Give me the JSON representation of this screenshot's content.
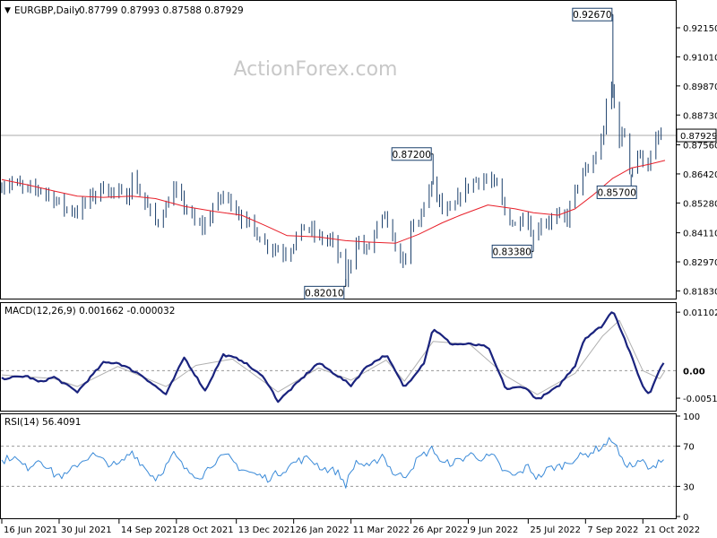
{
  "chart_data": [
    {
      "panel": "price",
      "type": "ohlc",
      "title": "EURGBP,Daily",
      "ohlc_readout": "0.87799 0.87993 0.87588 0.87929",
      "watermark": "ActionForex.com",
      "y_ticks": [
        "0.92150",
        "0.91010",
        "0.89870",
        "0.88730",
        "0.87560",
        "0.86420",
        "0.85280",
        "0.84110",
        "0.82970",
        "0.81830"
      ],
      "ylim": [
        0.816,
        0.931
      ],
      "last_price_label": "0.87929",
      "last_price": 0.87929,
      "annotations": [
        {
          "text": "0.92670",
          "value": 0.9267,
          "date": "2022-09-28"
        },
        {
          "text": "0.87200",
          "value": 0.872,
          "date": "2022-05-13"
        },
        {
          "text": "0.85700",
          "value": 0.857,
          "date": "2022-10-12"
        },
        {
          "text": "0.83380",
          "value": 0.8338,
          "date": "2022-07-29"
        },
        {
          "text": "0.82010",
          "value": 0.8201,
          "date": "2022-03-07"
        }
      ],
      "close_path": [
        [
          "2021-06-16",
          0.86
        ],
        [
          "2021-06-25",
          0.861
        ],
        [
          "2021-07-05",
          0.8575
        ],
        [
          "2021-07-15",
          0.8585
        ],
        [
          "2021-07-26",
          0.8545
        ],
        [
          "2021-08-04",
          0.8505
        ],
        [
          "2021-08-13",
          0.8495
        ],
        [
          "2021-08-24",
          0.8555
        ],
        [
          "2021-09-02",
          0.859
        ],
        [
          "2021-09-10",
          0.857
        ],
        [
          "2021-09-20",
          0.855
        ],
        [
          "2021-09-24",
          0.862
        ],
        [
          "2021-10-01",
          0.856
        ],
        [
          "2021-10-12",
          0.845
        ],
        [
          "2021-10-20",
          0.851
        ],
        [
          "2021-10-25",
          0.8585
        ],
        [
          "2021-11-03",
          0.852
        ],
        [
          "2021-11-12",
          0.844
        ],
        [
          "2021-11-19",
          0.844
        ],
        [
          "2021-11-26",
          0.852
        ],
        [
          "2021-12-03",
          0.8555
        ],
        [
          "2021-12-10",
          0.853
        ],
        [
          "2021-12-17",
          0.847
        ],
        [
          "2021-12-27",
          0.842
        ],
        [
          "2022-01-04",
          0.837
        ],
        [
          "2022-01-12",
          0.835
        ],
        [
          "2022-01-21",
          0.833
        ],
        [
          "2022-01-28",
          0.839
        ],
        [
          "2022-02-04",
          0.844
        ],
        [
          "2022-02-14",
          0.839
        ],
        [
          "2022-02-24",
          0.838
        ],
        [
          "2022-03-04",
          0.829
        ],
        [
          "2022-03-07",
          0.823
        ],
        [
          "2022-03-15",
          0.838
        ],
        [
          "2022-03-23",
          0.834
        ],
        [
          "2022-03-31",
          0.843
        ],
        [
          "2022-04-07",
          0.848
        ],
        [
          "2022-04-14",
          0.833
        ],
        [
          "2022-04-21",
          0.83
        ],
        [
          "2022-04-26",
          0.842
        ],
        [
          "2022-05-02",
          0.845
        ],
        [
          "2022-05-06",
          0.853
        ],
        [
          "2022-05-13",
          0.86
        ],
        [
          "2022-05-20",
          0.85
        ],
        [
          "2022-05-27",
          0.849
        ],
        [
          "2022-06-03",
          0.856
        ],
        [
          "2022-06-10",
          0.86
        ],
        [
          "2022-06-15",
          0.862
        ],
        [
          "2022-06-24",
          0.862
        ],
        [
          "2022-07-01",
          0.859
        ],
        [
          "2022-07-08",
          0.848
        ],
        [
          "2022-07-15",
          0.844
        ],
        [
          "2022-07-22",
          0.849
        ],
        [
          "2022-07-29",
          0.84
        ],
        [
          "2022-08-03",
          0.845
        ],
        [
          "2022-08-10",
          0.846
        ],
        [
          "2022-08-17",
          0.847
        ],
        [
          "2022-08-24",
          0.847
        ],
        [
          "2022-08-30",
          0.858
        ],
        [
          "2022-09-06",
          0.864
        ],
        [
          "2022-09-13",
          0.869
        ],
        [
          "2022-09-20",
          0.878
        ],
        [
          "2022-09-26",
          0.902
        ],
        [
          "2022-09-28",
          0.894
        ],
        [
          "2022-10-03",
          0.878
        ],
        [
          "2022-10-07",
          0.88
        ],
        [
          "2022-10-12",
          0.864
        ],
        [
          "2022-10-17",
          0.872
        ],
        [
          "2022-10-21",
          0.87
        ],
        [
          "2022-10-26",
          0.868
        ],
        [
          "2022-10-31",
          0.877
        ],
        [
          "2022-11-03",
          0.879
        ],
        [
          "2022-11-07",
          0.8793
        ]
      ],
      "ma_path": [
        [
          "2021-06-16",
          0.862
        ],
        [
          "2021-07-05",
          0.86
        ],
        [
          "2021-07-26",
          0.8575
        ],
        [
          "2021-08-13",
          0.8555
        ],
        [
          "2021-09-02",
          0.855
        ],
        [
          "2021-09-24",
          0.8555
        ],
        [
          "2021-10-12",
          0.8545
        ],
        [
          "2021-11-03",
          0.8515
        ],
        [
          "2021-11-26",
          0.8495
        ],
        [
          "2021-12-17",
          0.848
        ],
        [
          "2022-01-04",
          0.844
        ],
        [
          "2022-01-21",
          0.84
        ],
        [
          "2022-02-14",
          0.8395
        ],
        [
          "2022-03-07",
          0.838
        ],
        [
          "2022-03-23",
          0.8375
        ],
        [
          "2022-04-14",
          0.837
        ],
        [
          "2022-05-02",
          0.8405
        ],
        [
          "2022-05-20",
          0.845
        ],
        [
          "2022-06-03",
          0.848
        ],
        [
          "2022-06-24",
          0.852
        ],
        [
          "2022-07-15",
          0.8505
        ],
        [
          "2022-07-29",
          0.849
        ],
        [
          "2022-08-17",
          0.848
        ],
        [
          "2022-08-30",
          0.8505
        ],
        [
          "2022-09-13",
          0.856
        ],
        [
          "2022-09-28",
          0.8625
        ],
        [
          "2022-10-12",
          0.8665
        ],
        [
          "2022-10-26",
          0.868
        ],
        [
          "2022-11-07",
          0.8695
        ]
      ]
    },
    {
      "panel": "macd",
      "type": "line",
      "title": "MACD(12,26,9) 0.001662 -0.000032",
      "y_ticks": [
        "0.011023",
        "0.00",
        "-0.005182"
      ],
      "ylim": [
        -0.0072,
        0.0124
      ],
      "last_label": "0.00",
      "macd_path": [
        [
          "2021-06-16",
          -0.0015
        ],
        [
          "2021-07-05",
          -0.001
        ],
        [
          "2021-07-15",
          -0.0022
        ],
        [
          "2021-07-26",
          -0.0012
        ],
        [
          "2021-08-13",
          -0.004
        ],
        [
          "2021-09-02",
          0.0015
        ],
        [
          "2021-09-13",
          0.0015
        ],
        [
          "2021-10-01",
          -0.0008
        ],
        [
          "2021-10-20",
          -0.0045
        ],
        [
          "2021-11-03",
          0.0025
        ],
        [
          "2021-11-19",
          -0.0038
        ],
        [
          "2021-12-03",
          0.003
        ],
        [
          "2021-12-17",
          0.002
        ],
        [
          "2022-01-04",
          -0.0015
        ],
        [
          "2022-01-14",
          -0.0058
        ],
        [
          "2022-01-28",
          -0.0025
        ],
        [
          "2022-02-14",
          0.0015
        ],
        [
          "2022-03-04",
          -0.0015
        ],
        [
          "2022-03-11",
          -0.0028
        ],
        [
          "2022-03-23",
          0.0008
        ],
        [
          "2022-04-07",
          0.003
        ],
        [
          "2022-04-21",
          -0.0032
        ],
        [
          "2022-05-06",
          0.0015
        ],
        [
          "2022-05-13",
          0.008
        ],
        [
          "2022-05-27",
          0.005
        ],
        [
          "2022-06-10",
          0.005
        ],
        [
          "2022-06-24",
          0.0045
        ],
        [
          "2022-07-08",
          -0.0035
        ],
        [
          "2022-07-22",
          -0.003
        ],
        [
          "2022-08-01",
          -0.0055
        ],
        [
          "2022-08-17",
          -0.003
        ],
        [
          "2022-08-30",
          0.001
        ],
        [
          "2022-09-06",
          0.006
        ],
        [
          "2022-09-20",
          0.0085
        ],
        [
          "2022-09-28",
          0.0115
        ],
        [
          "2022-10-07",
          0.006
        ],
        [
          "2022-10-21",
          -0.003
        ],
        [
          "2022-10-26",
          -0.0045
        ],
        [
          "2022-11-03",
          0.0005
        ],
        [
          "2022-11-07",
          0.0017
        ]
      ],
      "signal_path": [
        [
          "2021-06-16",
          -0.0008
        ],
        [
          "2021-07-26",
          -0.0015
        ],
        [
          "2021-08-13",
          -0.003
        ],
        [
          "2021-09-13",
          0.0008
        ],
        [
          "2021-10-20",
          -0.003
        ],
        [
          "2021-11-12",
          0.001
        ],
        [
          "2021-12-10",
          0.0022
        ],
        [
          "2022-01-14",
          -0.004
        ],
        [
          "2022-02-14",
          0.0005
        ],
        [
          "2022-03-11",
          -0.0018
        ],
        [
          "2022-04-07",
          0.002
        ],
        [
          "2022-04-21",
          -0.002
        ],
        [
          "2022-05-13",
          0.0055
        ],
        [
          "2022-06-10",
          0.005
        ],
        [
          "2022-07-08",
          -0.001
        ],
        [
          "2022-08-01",
          -0.0045
        ],
        [
          "2022-08-30",
          -0.0005
        ],
        [
          "2022-09-20",
          0.0065
        ],
        [
          "2022-10-03",
          0.0095
        ],
        [
          "2022-10-21",
          0.0
        ],
        [
          "2022-11-03",
          -0.0015
        ],
        [
          "2022-11-07",
          0.0
        ]
      ]
    },
    {
      "panel": "rsi",
      "type": "line",
      "title": "RSI(14) 56.4091",
      "y_ticks": [
        "100",
        "70",
        "30",
        "0"
      ],
      "ylim": [
        0,
        100
      ],
      "levels": [
        70,
        30
      ],
      "rsi_path": [
        [
          "2021-06-16",
          55
        ],
        [
          "2021-06-24",
          60
        ],
        [
          "2021-07-05",
          48
        ],
        [
          "2021-07-15",
          58
        ],
        [
          "2021-07-26",
          42
        ],
        [
          "2021-08-04",
          40
        ],
        [
          "2021-08-13",
          52
        ],
        [
          "2021-08-24",
          62
        ],
        [
          "2021-09-02",
          55
        ],
        [
          "2021-09-13",
          50
        ],
        [
          "2021-09-24",
          65
        ],
        [
          "2021-10-04",
          48
        ],
        [
          "2021-10-12",
          38
        ],
        [
          "2021-10-20",
          50
        ],
        [
          "2021-10-26",
          62
        ],
        [
          "2021-11-05",
          45
        ],
        [
          "2021-11-16",
          40
        ],
        [
          "2021-11-26",
          55
        ],
        [
          "2021-12-06",
          60
        ],
        [
          "2021-12-16",
          48
        ],
        [
          "2021-12-27",
          42
        ],
        [
          "2022-01-06",
          38
        ],
        [
          "2022-01-17",
          45
        ],
        [
          "2022-01-28",
          55
        ],
        [
          "2022-02-07",
          58
        ],
        [
          "2022-02-17",
          48
        ],
        [
          "2022-02-28",
          45
        ],
        [
          "2022-03-07",
          32
        ],
        [
          "2022-03-15",
          55
        ],
        [
          "2022-03-25",
          48
        ],
        [
          "2022-04-04",
          62
        ],
        [
          "2022-04-13",
          42
        ],
        [
          "2022-04-21",
          40
        ],
        [
          "2022-05-02",
          58
        ],
        [
          "2022-05-13",
          68
        ],
        [
          "2022-05-20",
          52
        ],
        [
          "2022-06-01",
          55
        ],
        [
          "2022-06-10",
          62
        ],
        [
          "2022-06-20",
          58
        ],
        [
          "2022-06-28",
          60
        ],
        [
          "2022-07-06",
          45
        ],
        [
          "2022-07-15",
          40
        ],
        [
          "2022-07-25",
          50
        ],
        [
          "2022-08-01",
          38
        ],
        [
          "2022-08-10",
          48
        ],
        [
          "2022-08-19",
          50
        ],
        [
          "2022-08-30",
          58
        ],
        [
          "2022-09-08",
          62
        ],
        [
          "2022-09-20",
          70
        ],
        [
          "2022-09-28",
          78
        ],
        [
          "2022-10-05",
          55
        ],
        [
          "2022-10-13",
          50
        ],
        [
          "2022-10-21",
          55
        ],
        [
          "2022-10-27",
          45
        ],
        [
          "2022-11-03",
          58
        ],
        [
          "2022-11-07",
          56.4
        ]
      ]
    }
  ],
  "x_axis": {
    "start": "2021-06-16",
    "end": "2022-11-07",
    "tick_labels": [
      {
        "text": "16 Jun 2021",
        "date": "2021-06-16"
      },
      {
        "text": "30 Jul 2021",
        "date": "2021-07-30"
      },
      {
        "text": "14 Sep 2021",
        "date": "2021-09-14"
      },
      {
        "text": "28 Oct 2021",
        "date": "2021-10-28"
      },
      {
        "text": "13 Dec 2021",
        "date": "2021-12-13"
      },
      {
        "text": "26 Jan 2022",
        "date": "2022-01-26"
      },
      {
        "text": "11 Mar 2022",
        "date": "2022-03-11"
      },
      {
        "text": "26 Apr 2022",
        "date": "2022-04-26"
      },
      {
        "text": "9 Jun 2022",
        "date": "2022-06-09"
      },
      {
        "text": "25 Jul 2022",
        "date": "2022-07-25"
      },
      {
        "text": "7 Sep 2022",
        "date": "2022-09-07"
      },
      {
        "text": "21 Oct 2022",
        "date": "2022-10-21"
      }
    ]
  },
  "colors": {
    "price_bars": "#1a3f6b",
    "ma_line": "#e8202a",
    "macd_line": "#1a237e",
    "signal_line": "#b0b0b0",
    "rsi_line": "#3a8ad8",
    "axis": "#000000",
    "watermark": "#c8c8c8",
    "level_lines": "#9a9a9a"
  }
}
